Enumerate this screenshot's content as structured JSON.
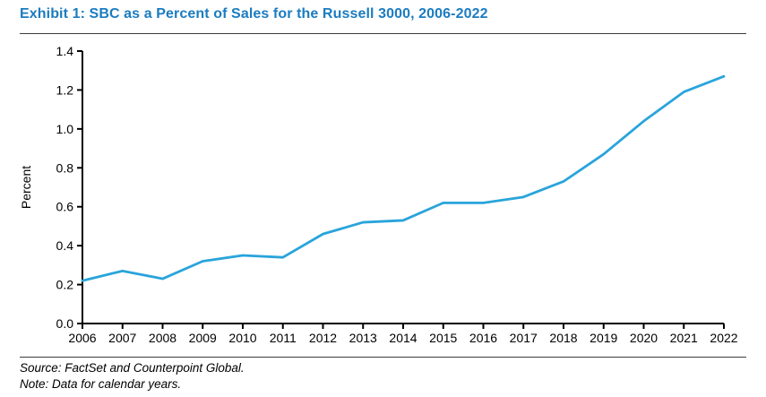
{
  "page": {
    "title": "Exhibit 1: SBC as a Percent of Sales for the Russell 3000, 2006-2022",
    "source": "Source: FactSet and Counterpoint Global.",
    "note": "Note: Data for calendar years."
  },
  "colors": {
    "title": "#1b7cc0",
    "line": "#29a4db",
    "axis": "#000000",
    "divider": "#3d3d3d",
    "text": "#000000"
  },
  "chart_data": {
    "type": "line",
    "title": "SBC as a Percent of Sales for the Russell 3000, 2006-2022",
    "x": [
      2006,
      2007,
      2008,
      2009,
      2010,
      2011,
      2012,
      2013,
      2014,
      2015,
      2016,
      2017,
      2018,
      2019,
      2020,
      2021,
      2022
    ],
    "series": [
      {
        "name": "SBC as a percent of sales",
        "values": [
          0.22,
          0.27,
          0.23,
          0.32,
          0.35,
          0.34,
          0.46,
          0.52,
          0.53,
          0.62,
          0.62,
          0.65,
          0.73,
          0.87,
          1.04,
          1.19,
          1.27
        ]
      }
    ],
    "xlabel": "",
    "ylabel": "Percent",
    "ylim": [
      0.0,
      1.4
    ],
    "ytick_step": 0.2,
    "ytick_labels": [
      "0.0",
      "0.2",
      "0.4",
      "0.6",
      "0.8",
      "1.0",
      "1.2",
      "1.4"
    ],
    "grid": false,
    "legend_position": "none"
  }
}
